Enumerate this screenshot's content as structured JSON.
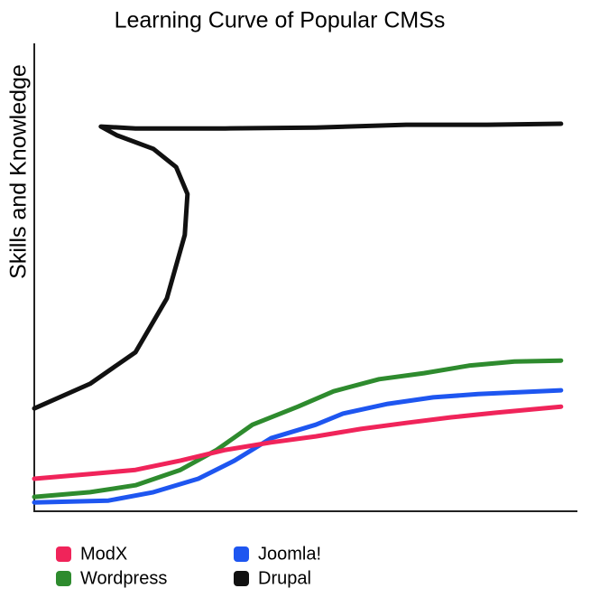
{
  "chart_data": {
    "type": "line",
    "title": "Learning Curve of Popular CMSs",
    "y_label": "Skills and Knowledge",
    "xlim": [
      0,
      100
    ],
    "ylim": [
      0,
      100
    ],
    "legend": "bottom",
    "series": [
      {
        "name": "ModX",
        "color": "#f0245a",
        "x": [
          0,
          10.3,
          18.7,
          27,
          35.3,
          43.7,
          52,
          60.3,
          68.7,
          77,
          85.3,
          97.3
        ],
        "values": [
          6.8,
          7.8,
          8.7,
          10.7,
          13,
          14.6,
          15.9,
          17.5,
          18.8,
          20,
          21,
          22.3
        ]
      },
      {
        "name": "Wordpress",
        "color": "#2e8b2e",
        "x": [
          0,
          10.3,
          18.7,
          27,
          33.7,
          40.3,
          48.7,
          55.3,
          63.7,
          72,
          80.3,
          88.7,
          97.3
        ],
        "values": [
          2.9,
          3.9,
          5.4,
          8.7,
          13,
          18.4,
          22.3,
          25.6,
          28.2,
          29.5,
          31.1,
          32,
          32.2
        ]
      },
      {
        "name": "Joomla!",
        "color": "#1e56f0",
        "x": [
          0,
          13.7,
          22,
          30.3,
          37,
          43.7,
          52,
          57,
          65.3,
          73.7,
          82,
          97.3
        ],
        "values": [
          1.7,
          2.1,
          3.9,
          6.8,
          10.7,
          15.5,
          18.4,
          20.8,
          22.9,
          24.3,
          25,
          25.8
        ]
      },
      {
        "name": "Drupal",
        "color": "#111111",
        "x": [
          0,
          10.3,
          18.7,
          24.5,
          27.8,
          28.3,
          26.2,
          22,
          15.3,
          12.3,
          18.7,
          35.3,
          52,
          68.7,
          83.7,
          97.3
        ],
        "values": [
          21.9,
          27.2,
          34,
          45.6,
          59.2,
          68,
          73.8,
          77.7,
          80.6,
          82.5,
          82.1,
          82.1,
          82.3,
          82.9,
          82.9,
          83.1
        ]
      }
    ]
  }
}
